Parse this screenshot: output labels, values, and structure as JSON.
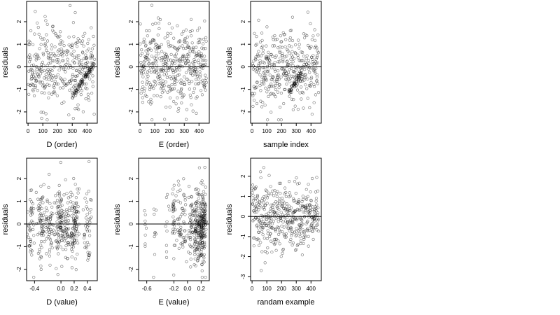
{
  "chart_data": [
    {
      "type": "scatter",
      "title": "",
      "xlabel": "D (order)",
      "ylabel": "residuals",
      "xlim": [
        -10,
        470
      ],
      "ylim": [
        -2.5,
        2.9
      ],
      "xticks": [
        0,
        100,
        200,
        300,
        400
      ],
      "yticks": [
        -2,
        -1,
        0,
        1,
        2
      ],
      "reference_line_y": 0,
      "marker": "open circle",
      "pattern": "curved",
      "seed": 11,
      "n": 430
    },
    {
      "type": "scatter",
      "title": "",
      "xlabel": "E (order)",
      "ylabel": "residuals",
      "xlim": [
        -10,
        470
      ],
      "ylim": [
        -2.5,
        2.9
      ],
      "xticks": [
        0,
        100,
        200,
        300,
        400
      ],
      "yticks": [
        -2,
        -1,
        0,
        1,
        2
      ],
      "reference_line_y": 0,
      "marker": "open circle",
      "pattern": "random",
      "seed": 22,
      "n": 430
    },
    {
      "type": "scatter",
      "title": "",
      "xlabel": "sample index",
      "ylabel": "residuals",
      "xlim": [
        -10,
        470
      ],
      "ylim": [
        -2.5,
        2.9
      ],
      "xticks": [
        0,
        100,
        200,
        300,
        400
      ],
      "yticks": [
        -2,
        -1,
        0,
        1,
        2
      ],
      "reference_line_y": 0,
      "marker": "open circle",
      "pattern": "random-with-streaks",
      "seed": 33,
      "n": 430
    },
    {
      "type": "scatter",
      "title": "",
      "xlabel": "D (value)",
      "ylabel": "residuals",
      "xlim": [
        -0.52,
        0.55
      ],
      "ylim": [
        -2.5,
        2.9
      ],
      "xticks": [
        -0.4,
        0.0,
        0.2,
        0.4
      ],
      "xtick_labels": [
        "-0.4",
        "0.0",
        "0.2",
        "0.4"
      ],
      "yticks": [
        -2,
        -1,
        0,
        1,
        2
      ],
      "reference_line_y": 0,
      "marker": "open circle",
      "pattern": "clustered-columns",
      "seed": 44,
      "n": 430
    },
    {
      "type": "scatter",
      "title": "",
      "xlabel": "E (value)",
      "ylabel": "residuals",
      "xlim": [
        -0.72,
        0.32
      ],
      "ylim": [
        -2.5,
        2.9
      ],
      "xticks": [
        -0.6,
        -0.2,
        0.0,
        0.2
      ],
      "xtick_labels": [
        "-0.6",
        "-0.2",
        "0.0",
        "0.2"
      ],
      "yticks": [
        -2,
        -1,
        0,
        1,
        2
      ],
      "reference_line_y": 0,
      "marker": "open circle",
      "pattern": "right-heavy-columns",
      "seed": 55,
      "n": 430
    },
    {
      "type": "scatter",
      "title": "",
      "xlabel": "randam example",
      "ylabel": "residuals",
      "xlim": [
        -10,
        470
      ],
      "ylim": [
        -3.2,
        2.9
      ],
      "xticks": [
        0,
        100,
        200,
        300,
        400
      ],
      "yticks": [
        -3,
        -2,
        -1,
        0,
        1,
        2
      ],
      "reference_line_y": 0,
      "marker": "open circle",
      "pattern": "random",
      "seed": 66,
      "n": 430
    }
  ]
}
